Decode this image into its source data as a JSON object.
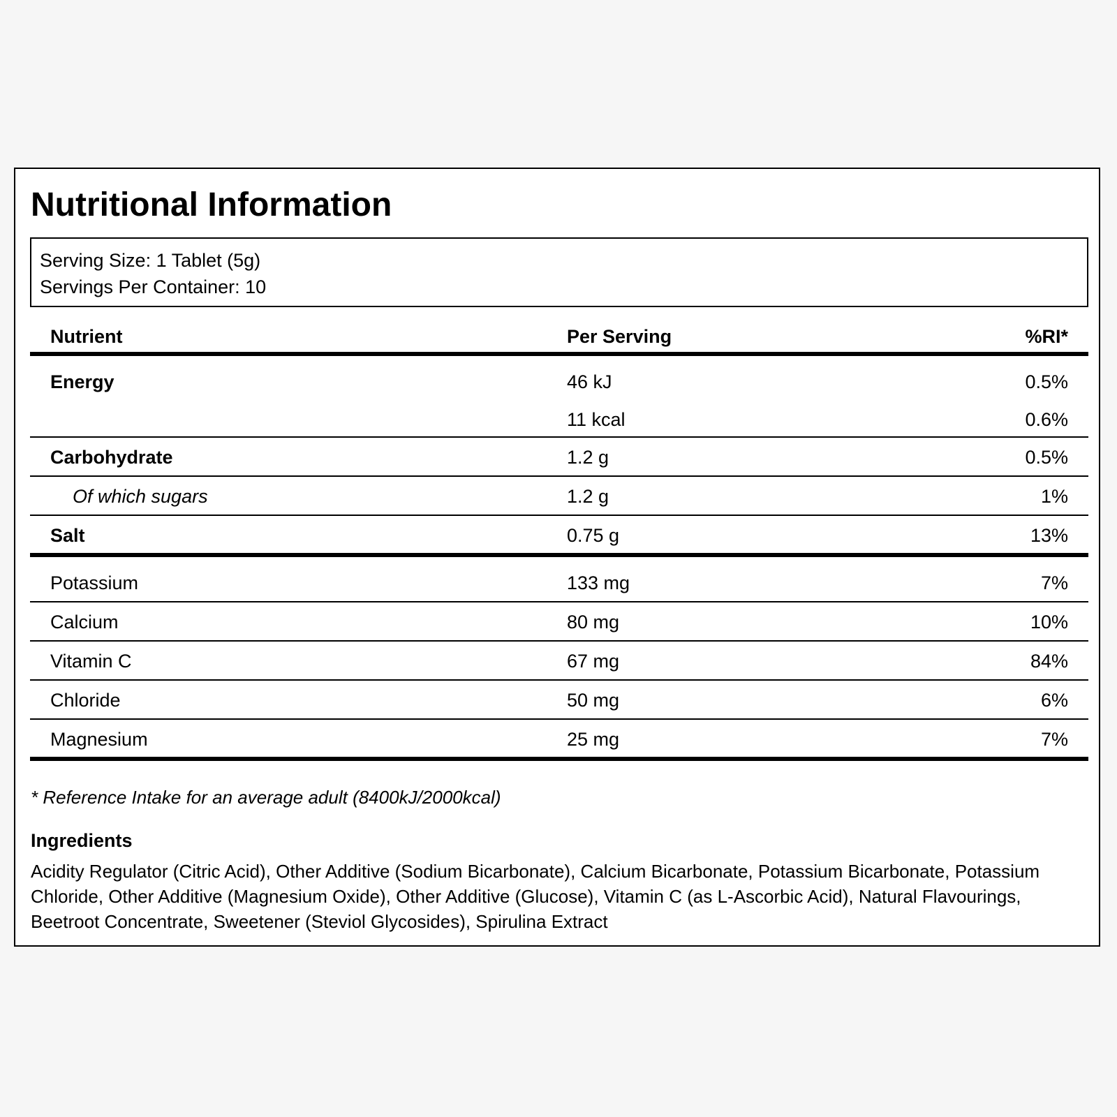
{
  "title": "Nutritional Information",
  "serving": {
    "size": "Serving Size: 1 Tablet (5g)",
    "per_container": "Servings Per Container: 10"
  },
  "table": {
    "headers": {
      "nutrient": "Nutrient",
      "per_serving": "Per Serving",
      "ri": "%RI*"
    },
    "rows": [
      {
        "nutrient": "Energy",
        "per_serving": "46 kJ",
        "ri": "0.5%"
      },
      {
        "nutrient": "",
        "per_serving": "11 kcal",
        "ri": "0.6%"
      },
      {
        "nutrient": "Carbohydrate",
        "per_serving": "1.2 g",
        "ri": "0.5%"
      },
      {
        "nutrient": "Of which sugars",
        "per_serving": "1.2 g",
        "ri": "1%"
      },
      {
        "nutrient": "Salt",
        "per_serving": "0.75 g",
        "ri": "13%"
      },
      {
        "nutrient": "Potassium",
        "per_serving": "133 mg",
        "ri": "7%"
      },
      {
        "nutrient": "Calcium",
        "per_serving": "80 mg",
        "ri": "10%"
      },
      {
        "nutrient": "Vitamin C",
        "per_serving": "67 mg",
        "ri": "84%"
      },
      {
        "nutrient": "Chloride",
        "per_serving": "50 mg",
        "ri": "6%"
      },
      {
        "nutrient": "Magnesium",
        "per_serving": "25 mg",
        "ri": "7%"
      }
    ]
  },
  "footnote": "* Reference Intake for an average adult (8400kJ/2000kcal)",
  "ingredients": {
    "title": "Ingredients",
    "text": "Acidity Regulator (Citric Acid), Other Additive (Sodium Bicarbonate), Calcium Bicarbonate, Potassium Bicarbonate, Potassium Chloride, Other Additive (Magnesium Oxide), Other Additive (Glucose), Vitamin C (as L-Ascorbic Acid), Natural Flavourings, Beetroot Concentrate, Sweetener (Steviol Glycosides), Spirulina Extract"
  }
}
